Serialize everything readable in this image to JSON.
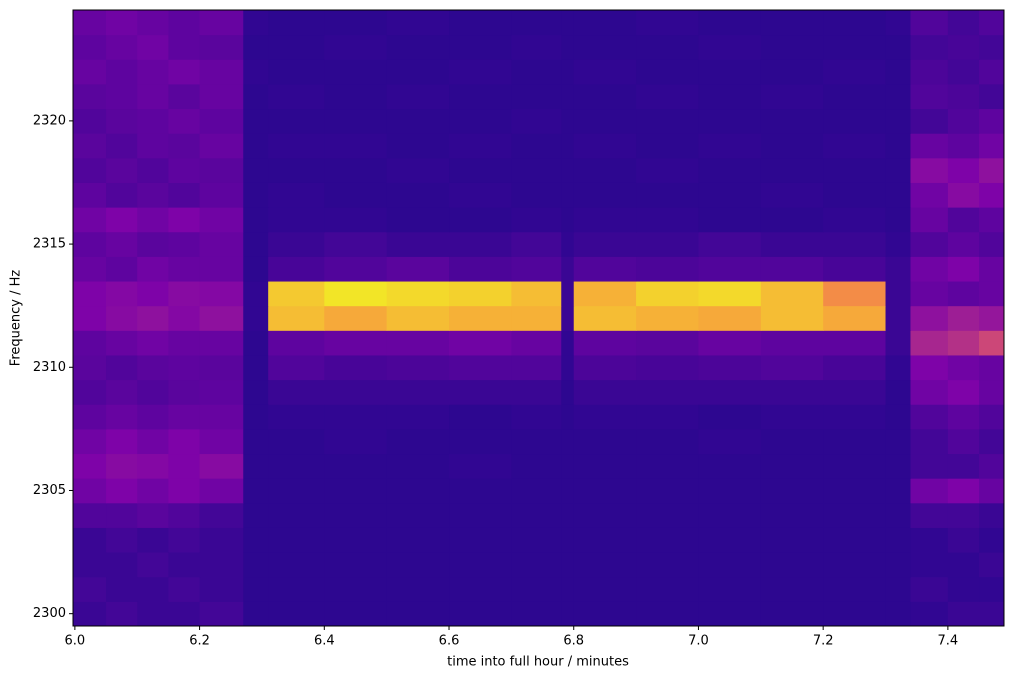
{
  "chart_data": {
    "type": "heatmap",
    "colormap": "plasma",
    "xlabel": "time into full hour / minutes",
    "ylabel": "Frequency / Hz",
    "x": [
      5.997,
      6.05,
      6.1,
      6.15,
      6.2,
      6.27,
      6.31,
      6.4,
      6.5,
      6.6,
      6.7,
      6.78,
      6.8,
      6.9,
      7.0,
      7.1,
      7.2,
      7.3,
      7.34,
      7.4,
      7.45,
      7.49
    ],
    "y": [
      2300,
      2301,
      2302,
      2303,
      2304,
      2305,
      2306,
      2307,
      2308,
      2309,
      2310,
      2311,
      2312,
      2313,
      2314,
      2315,
      2316,
      2317,
      2318,
      2319,
      2320,
      2321,
      2322,
      2323,
      2324
    ],
    "z": [
      [
        0.1,
        0.12,
        0.1,
        0.1,
        0.12,
        0.07,
        0.07,
        0.07,
        0.07,
        0.07,
        0.07,
        0.07,
        0.07,
        0.07,
        0.07,
        0.07,
        0.07,
        0.07,
        0.08,
        0.1,
        0.1
      ],
      [
        0.12,
        0.1,
        0.1,
        0.12,
        0.1,
        0.07,
        0.07,
        0.07,
        0.07,
        0.07,
        0.07,
        0.07,
        0.07,
        0.07,
        0.07,
        0.07,
        0.07,
        0.07,
        0.1,
        0.08,
        0.08
      ],
      [
        0.1,
        0.1,
        0.12,
        0.1,
        0.1,
        0.07,
        0.07,
        0.07,
        0.07,
        0.07,
        0.07,
        0.07,
        0.07,
        0.07,
        0.07,
        0.07,
        0.07,
        0.07,
        0.08,
        0.08,
        0.1
      ],
      [
        0.1,
        0.12,
        0.1,
        0.12,
        0.1,
        0.07,
        0.07,
        0.07,
        0.07,
        0.07,
        0.07,
        0.07,
        0.07,
        0.07,
        0.07,
        0.07,
        0.07,
        0.07,
        0.08,
        0.1,
        0.08
      ],
      [
        0.15,
        0.15,
        0.17,
        0.15,
        0.12,
        0.07,
        0.07,
        0.07,
        0.07,
        0.07,
        0.07,
        0.07,
        0.07,
        0.07,
        0.07,
        0.07,
        0.07,
        0.07,
        0.12,
        0.12,
        0.1
      ],
      [
        0.22,
        0.25,
        0.22,
        0.25,
        0.22,
        0.07,
        0.07,
        0.07,
        0.07,
        0.07,
        0.07,
        0.07,
        0.07,
        0.07,
        0.07,
        0.07,
        0.07,
        0.07,
        0.22,
        0.25,
        0.2
      ],
      [
        0.25,
        0.28,
        0.27,
        0.25,
        0.28,
        0.07,
        0.07,
        0.07,
        0.07,
        0.08,
        0.07,
        0.07,
        0.07,
        0.07,
        0.07,
        0.07,
        0.07,
        0.07,
        0.12,
        0.12,
        0.15
      ],
      [
        0.22,
        0.25,
        0.22,
        0.25,
        0.22,
        0.07,
        0.07,
        0.08,
        0.07,
        0.07,
        0.07,
        0.07,
        0.07,
        0.07,
        0.08,
        0.07,
        0.07,
        0.07,
        0.12,
        0.15,
        0.12
      ],
      [
        0.18,
        0.2,
        0.18,
        0.2,
        0.2,
        0.07,
        0.08,
        0.08,
        0.08,
        0.07,
        0.08,
        0.07,
        0.08,
        0.08,
        0.07,
        0.08,
        0.08,
        0.07,
        0.15,
        0.18,
        0.15
      ],
      [
        0.15,
        0.17,
        0.15,
        0.17,
        0.18,
        0.07,
        0.1,
        0.1,
        0.1,
        0.1,
        0.1,
        0.07,
        0.1,
        0.1,
        0.1,
        0.1,
        0.1,
        0.07,
        0.22,
        0.25,
        0.2
      ],
      [
        0.17,
        0.15,
        0.17,
        0.18,
        0.17,
        0.07,
        0.15,
        0.13,
        0.14,
        0.15,
        0.15,
        0.08,
        0.14,
        0.13,
        0.14,
        0.15,
        0.13,
        0.08,
        0.25,
        0.22,
        0.2
      ],
      [
        0.18,
        0.2,
        0.22,
        0.2,
        0.2,
        0.07,
        0.18,
        0.2,
        0.2,
        0.22,
        0.2,
        0.08,
        0.18,
        0.17,
        0.2,
        0.18,
        0.18,
        0.1,
        0.38,
        0.42,
        0.5
      ],
      [
        0.25,
        0.28,
        0.3,
        0.27,
        0.3,
        0.08,
        0.85,
        0.8,
        0.85,
        0.82,
        0.82,
        0.1,
        0.85,
        0.82,
        0.8,
        0.85,
        0.8,
        0.1,
        0.3,
        0.35,
        0.32
      ],
      [
        0.25,
        0.27,
        0.25,
        0.28,
        0.27,
        0.08,
        0.88,
        0.95,
        0.92,
        0.9,
        0.85,
        0.1,
        0.82,
        0.9,
        0.92,
        0.85,
        0.72,
        0.1,
        0.2,
        0.18,
        0.2
      ],
      [
        0.2,
        0.18,
        0.22,
        0.2,
        0.2,
        0.07,
        0.13,
        0.15,
        0.17,
        0.14,
        0.15,
        0.1,
        0.15,
        0.14,
        0.15,
        0.15,
        0.13,
        0.1,
        0.22,
        0.25,
        0.2
      ],
      [
        0.18,
        0.2,
        0.17,
        0.18,
        0.2,
        0.07,
        0.1,
        0.12,
        0.1,
        0.1,
        0.12,
        0.08,
        0.1,
        0.1,
        0.12,
        0.1,
        0.1,
        0.08,
        0.15,
        0.18,
        0.15
      ],
      [
        0.22,
        0.25,
        0.22,
        0.25,
        0.22,
        0.07,
        0.08,
        0.08,
        0.07,
        0.07,
        0.08,
        0.07,
        0.08,
        0.08,
        0.07,
        0.07,
        0.08,
        0.07,
        0.2,
        0.15,
        0.18
      ],
      [
        0.18,
        0.15,
        0.17,
        0.15,
        0.18,
        0.07,
        0.08,
        0.07,
        0.07,
        0.08,
        0.07,
        0.07,
        0.07,
        0.07,
        0.07,
        0.08,
        0.07,
        0.07,
        0.22,
        0.28,
        0.25
      ],
      [
        0.15,
        0.17,
        0.15,
        0.18,
        0.17,
        0.07,
        0.07,
        0.07,
        0.08,
        0.07,
        0.07,
        0.07,
        0.07,
        0.08,
        0.07,
        0.07,
        0.07,
        0.07,
        0.28,
        0.25,
        0.3
      ],
      [
        0.17,
        0.15,
        0.18,
        0.17,
        0.2,
        0.07,
        0.08,
        0.08,
        0.07,
        0.08,
        0.07,
        0.07,
        0.08,
        0.07,
        0.08,
        0.07,
        0.08,
        0.07,
        0.2,
        0.18,
        0.22
      ],
      [
        0.15,
        0.17,
        0.18,
        0.2,
        0.18,
        0.07,
        0.07,
        0.07,
        0.07,
        0.07,
        0.08,
        0.07,
        0.07,
        0.07,
        0.07,
        0.07,
        0.07,
        0.07,
        0.12,
        0.15,
        0.18
      ],
      [
        0.17,
        0.18,
        0.2,
        0.17,
        0.2,
        0.07,
        0.08,
        0.07,
        0.08,
        0.07,
        0.07,
        0.07,
        0.07,
        0.08,
        0.07,
        0.08,
        0.07,
        0.07,
        0.15,
        0.14,
        0.12
      ],
      [
        0.2,
        0.18,
        0.2,
        0.22,
        0.2,
        0.08,
        0.07,
        0.07,
        0.07,
        0.08,
        0.07,
        0.07,
        0.08,
        0.07,
        0.07,
        0.07,
        0.08,
        0.07,
        0.14,
        0.12,
        0.15
      ],
      [
        0.18,
        0.2,
        0.22,
        0.18,
        0.17,
        0.07,
        0.07,
        0.08,
        0.07,
        0.07,
        0.08,
        0.07,
        0.07,
        0.07,
        0.08,
        0.07,
        0.07,
        0.07,
        0.12,
        0.13,
        0.12
      ],
      [
        0.2,
        0.22,
        0.2,
        0.18,
        0.2,
        0.08,
        0.07,
        0.07,
        0.08,
        0.07,
        0.07,
        0.07,
        0.07,
        0.08,
        0.07,
        0.07,
        0.07,
        0.08,
        0.15,
        0.12,
        0.15
      ]
    ],
    "xlim": [
      5.997,
      7.49
    ],
    "ylim": [
      2299.5,
      2324.5
    ],
    "xticks": [
      {
        "value": 6,
        "label": "6.0"
      },
      6.2,
      6.4,
      6.6,
      6.8,
      {
        "value": 7,
        "label": "7.0"
      },
      7.2,
      7.4
    ],
    "yticks": [
      2300,
      2305,
      2310,
      2315,
      2320
    ]
  }
}
